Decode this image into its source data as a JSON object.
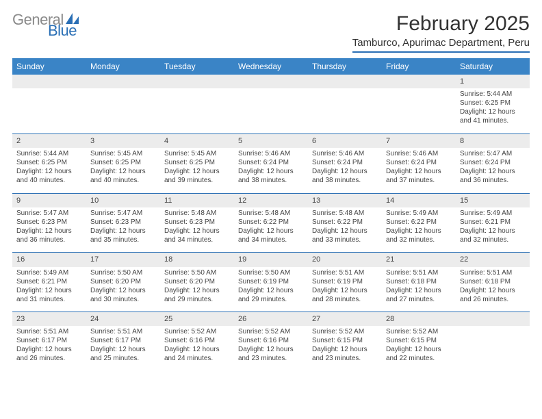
{
  "brand": {
    "text_gray": "General",
    "text_blue": "Blue"
  },
  "title": "February 2025",
  "location": "Tamburco, Apurimac Department, Peru",
  "colors": {
    "header_bar": "#3a84c6",
    "accent_line": "#2a6fb5",
    "daynum_bg": "#ececec",
    "text": "#444444",
    "background": "#ffffff"
  },
  "fonts": {
    "body_family": "Arial",
    "title_size_pt": 30,
    "location_size_pt": 15,
    "dayhead_size_pt": 12,
    "cell_size_pt": 10
  },
  "day_headers": [
    "Sunday",
    "Monday",
    "Tuesday",
    "Wednesday",
    "Thursday",
    "Friday",
    "Saturday"
  ],
  "weeks": [
    [
      null,
      null,
      null,
      null,
      null,
      null,
      {
        "n": "1",
        "sr": "5:44 AM",
        "ss": "6:25 PM",
        "dl": "12 hours and 41 minutes."
      }
    ],
    [
      {
        "n": "2",
        "sr": "5:44 AM",
        "ss": "6:25 PM",
        "dl": "12 hours and 40 minutes."
      },
      {
        "n": "3",
        "sr": "5:45 AM",
        "ss": "6:25 PM",
        "dl": "12 hours and 40 minutes."
      },
      {
        "n": "4",
        "sr": "5:45 AM",
        "ss": "6:25 PM",
        "dl": "12 hours and 39 minutes."
      },
      {
        "n": "5",
        "sr": "5:46 AM",
        "ss": "6:24 PM",
        "dl": "12 hours and 38 minutes."
      },
      {
        "n": "6",
        "sr": "5:46 AM",
        "ss": "6:24 PM",
        "dl": "12 hours and 38 minutes."
      },
      {
        "n": "7",
        "sr": "5:46 AM",
        "ss": "6:24 PM",
        "dl": "12 hours and 37 minutes."
      },
      {
        "n": "8",
        "sr": "5:47 AM",
        "ss": "6:24 PM",
        "dl": "12 hours and 36 minutes."
      }
    ],
    [
      {
        "n": "9",
        "sr": "5:47 AM",
        "ss": "6:23 PM",
        "dl": "12 hours and 36 minutes."
      },
      {
        "n": "10",
        "sr": "5:47 AM",
        "ss": "6:23 PM",
        "dl": "12 hours and 35 minutes."
      },
      {
        "n": "11",
        "sr": "5:48 AM",
        "ss": "6:23 PM",
        "dl": "12 hours and 34 minutes."
      },
      {
        "n": "12",
        "sr": "5:48 AM",
        "ss": "6:22 PM",
        "dl": "12 hours and 34 minutes."
      },
      {
        "n": "13",
        "sr": "5:48 AM",
        "ss": "6:22 PM",
        "dl": "12 hours and 33 minutes."
      },
      {
        "n": "14",
        "sr": "5:49 AM",
        "ss": "6:22 PM",
        "dl": "12 hours and 32 minutes."
      },
      {
        "n": "15",
        "sr": "5:49 AM",
        "ss": "6:21 PM",
        "dl": "12 hours and 32 minutes."
      }
    ],
    [
      {
        "n": "16",
        "sr": "5:49 AM",
        "ss": "6:21 PM",
        "dl": "12 hours and 31 minutes."
      },
      {
        "n": "17",
        "sr": "5:50 AM",
        "ss": "6:20 PM",
        "dl": "12 hours and 30 minutes."
      },
      {
        "n": "18",
        "sr": "5:50 AM",
        "ss": "6:20 PM",
        "dl": "12 hours and 29 minutes."
      },
      {
        "n": "19",
        "sr": "5:50 AM",
        "ss": "6:19 PM",
        "dl": "12 hours and 29 minutes."
      },
      {
        "n": "20",
        "sr": "5:51 AM",
        "ss": "6:19 PM",
        "dl": "12 hours and 28 minutes."
      },
      {
        "n": "21",
        "sr": "5:51 AM",
        "ss": "6:18 PM",
        "dl": "12 hours and 27 minutes."
      },
      {
        "n": "22",
        "sr": "5:51 AM",
        "ss": "6:18 PM",
        "dl": "12 hours and 26 minutes."
      }
    ],
    [
      {
        "n": "23",
        "sr": "5:51 AM",
        "ss": "6:17 PM",
        "dl": "12 hours and 26 minutes."
      },
      {
        "n": "24",
        "sr": "5:51 AM",
        "ss": "6:17 PM",
        "dl": "12 hours and 25 minutes."
      },
      {
        "n": "25",
        "sr": "5:52 AM",
        "ss": "6:16 PM",
        "dl": "12 hours and 24 minutes."
      },
      {
        "n": "26",
        "sr": "5:52 AM",
        "ss": "6:16 PM",
        "dl": "12 hours and 23 minutes."
      },
      {
        "n": "27",
        "sr": "5:52 AM",
        "ss": "6:15 PM",
        "dl": "12 hours and 23 minutes."
      },
      {
        "n": "28",
        "sr": "5:52 AM",
        "ss": "6:15 PM",
        "dl": "12 hours and 22 minutes."
      },
      null
    ]
  ],
  "labels": {
    "sunrise": "Sunrise:",
    "sunset": "Sunset:",
    "daylight": "Daylight:"
  }
}
